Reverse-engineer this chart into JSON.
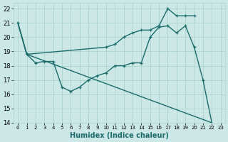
{
  "xlabel": "Humidex (Indice chaleur)",
  "bg_color": "#cce8e6",
  "line_color": "#1a6b6b",
  "grid_color": "#aad4cf",
  "xlim": [
    -0.5,
    23.5
  ],
  "ylim": [
    14,
    22.4
  ],
  "xticks": [
    0,
    1,
    2,
    3,
    4,
    5,
    6,
    7,
    8,
    9,
    10,
    11,
    12,
    13,
    14,
    15,
    16,
    17,
    18,
    19,
    20,
    21,
    22,
    23
  ],
  "yticks": [
    14,
    15,
    16,
    17,
    18,
    19,
    20,
    21,
    22
  ],
  "line1_x": [
    0,
    1,
    2,
    3,
    4,
    5,
    6,
    7,
    8,
    9,
    10,
    11,
    12,
    13,
    14,
    15,
    16,
    17,
    18,
    19,
    20,
    21,
    22
  ],
  "line1_y": [
    21,
    18.8,
    18.2,
    18.3,
    18.3,
    16.5,
    16.2,
    16.5,
    17.0,
    17.3,
    17.5,
    18.0,
    18.0,
    18.2,
    18.2,
    20.0,
    20.7,
    20.8,
    20.3,
    20.8,
    19.3,
    17.0,
    14.0
  ],
  "line2_x": [
    0,
    1,
    10,
    11,
    12,
    13,
    14,
    15,
    16,
    17,
    18,
    19,
    20
  ],
  "line2_y": [
    21,
    18.8,
    19.3,
    19.5,
    20.0,
    20.3,
    20.5,
    20.5,
    20.8,
    22.0,
    21.5,
    21.5,
    21.5
  ],
  "line3_x": [
    0,
    1,
    22
  ],
  "line3_y": [
    21,
    18.8,
    14.0
  ]
}
